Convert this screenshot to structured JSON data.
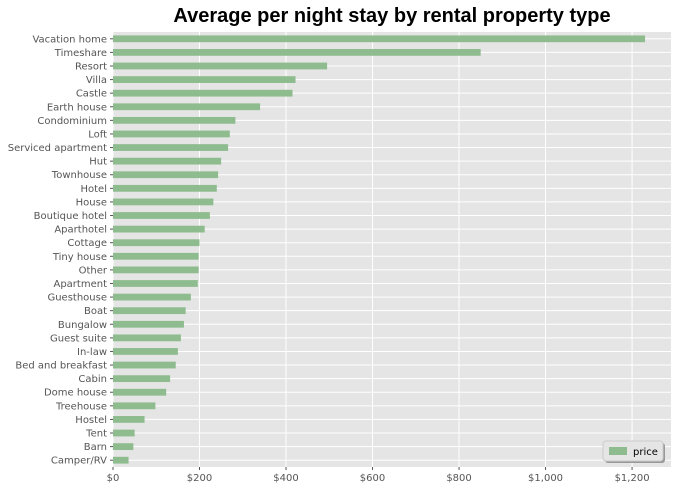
{
  "chart_data": {
    "type": "bar",
    "orientation": "horizontal",
    "title": "Average per night stay by rental property type",
    "xlabel": "",
    "ylabel": "",
    "xlim": [
      0,
      1290
    ],
    "x_ticks": [
      0,
      200,
      400,
      600,
      800,
      1000,
      1200
    ],
    "x_tick_labels": [
      "$0",
      "$200",
      "$400",
      "$600",
      "$800",
      "$1,000",
      "$1,200"
    ],
    "grid": true,
    "legend_position": "bottom-right",
    "bar_color": "#8fbc8f",
    "background_color": "#e5e5e5",
    "categories": [
      "Vacation home",
      "Timeshare",
      "Resort",
      "Villa",
      "Castle",
      "Earth house",
      "Condominium",
      "Loft",
      "Serviced apartment",
      "Hut",
      "Townhouse",
      "Hotel",
      "House",
      "Boutique hotel",
      "Aparthotel",
      "Cottage",
      "Tiny house",
      "Other",
      "Apartment",
      "Guesthouse",
      "Boat",
      "Bungalow",
      "Guest suite",
      "In-law",
      "Bed and breakfast",
      "Cabin",
      "Dome house",
      "Treehouse",
      "Hostel",
      "Tent",
      "Barn",
      "Camper/RV"
    ],
    "series": [
      {
        "name": "price",
        "values": [
          1230,
          850,
          495,
          422,
          415,
          340,
          283,
          270,
          266,
          250,
          243,
          240,
          232,
          224,
          212,
          200,
          198,
          198,
          196,
          180,
          168,
          164,
          157,
          150,
          145,
          132,
          123,
          98,
          73,
          50,
          47,
          36
        ]
      }
    ]
  }
}
